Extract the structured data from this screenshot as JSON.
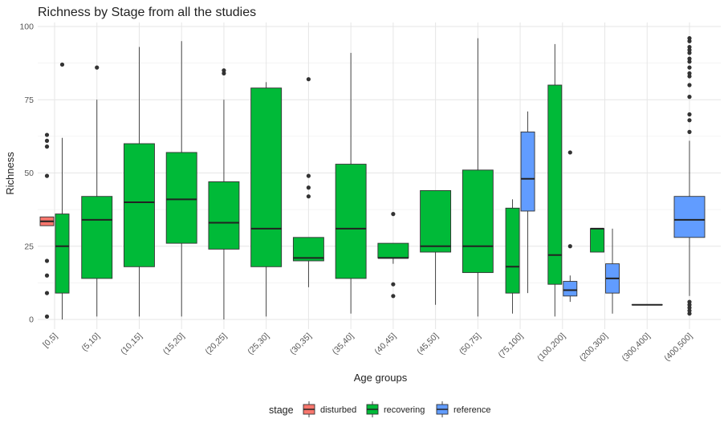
{
  "chart_data": {
    "type": "boxplot",
    "title": "Richness by Stage from all the studies",
    "xlabel": "Age groups",
    "ylabel": "Richness",
    "ylim": [
      0,
      100
    ],
    "yticks": [
      0,
      25,
      50,
      75,
      100
    ],
    "grid": true,
    "categories": [
      "[0,5]",
      "(5,10]",
      "(10,15]",
      "(15,20]",
      "(20,25]",
      "(25,30]",
      "(30,35]",
      "(35,40]",
      "(40,45]",
      "(45,50]",
      "(50,75]",
      "(75,100]",
      "(100,200]",
      "(200,300]",
      "(300,400]",
      "(400,500]"
    ],
    "legend": {
      "title": "stage",
      "position": "bottom",
      "entries": [
        {
          "name": "disturbed",
          "color": "#F8766D"
        },
        {
          "name": "recovering",
          "color": "#00BA38"
        },
        {
          "name": "reference",
          "color": "#619CFF"
        }
      ]
    },
    "boxes": [
      {
        "category": "[0,5]",
        "stage": "disturbed",
        "whisker_low": 32,
        "q1": 32,
        "median": 33.5,
        "q3": 35,
        "whisker_high": 35,
        "outliers": [
          63,
          61,
          59,
          49,
          20,
          15,
          9,
          1
        ]
      },
      {
        "category": "[0,5]",
        "stage": "recovering",
        "whisker_low": 0,
        "q1": 9,
        "median": 25,
        "q3": 36,
        "whisker_high": 62,
        "outliers": [
          87
        ]
      },
      {
        "category": "(5,10]",
        "stage": "recovering",
        "whisker_low": 1,
        "q1": 14,
        "median": 34,
        "q3": 42,
        "whisker_high": 75,
        "outliers": [
          86
        ]
      },
      {
        "category": "(10,15]",
        "stage": "recovering",
        "whisker_low": 1,
        "q1": 18,
        "median": 40,
        "q3": 60,
        "whisker_high": 93,
        "outliers": []
      },
      {
        "category": "(15,20]",
        "stage": "recovering",
        "whisker_low": 1,
        "q1": 26,
        "median": 41,
        "q3": 57,
        "whisker_high": 95,
        "outliers": []
      },
      {
        "category": "(20,25]",
        "stage": "recovering",
        "whisker_low": 0,
        "q1": 24,
        "median": 33,
        "q3": 47,
        "whisker_high": 75,
        "outliers": [
          85,
          84
        ]
      },
      {
        "category": "(25,30]",
        "stage": "recovering",
        "whisker_low": 1,
        "q1": 18,
        "median": 31,
        "q3": 79,
        "whisker_high": 81,
        "outliers": []
      },
      {
        "category": "(30,35]",
        "stage": "recovering",
        "whisker_low": 11,
        "q1": 20,
        "median": 21,
        "q3": 28,
        "whisker_high": 28,
        "outliers": [
          82,
          49,
          45,
          42
        ]
      },
      {
        "category": "(35,40]",
        "stage": "recovering",
        "whisker_low": 2,
        "q1": 14,
        "median": 31,
        "q3": 53,
        "whisker_high": 91,
        "outliers": []
      },
      {
        "category": "(40,45]",
        "stage": "recovering",
        "whisker_low": 19,
        "q1": 21,
        "median": 21,
        "q3": 26,
        "whisker_high": 26,
        "outliers": [
          36,
          12,
          8
        ]
      },
      {
        "category": "(45,50]",
        "stage": "recovering",
        "whisker_low": 5,
        "q1": 23,
        "median": 25,
        "q3": 44,
        "whisker_high": 44,
        "outliers": []
      },
      {
        "category": "(50,75]",
        "stage": "recovering",
        "whisker_low": 1,
        "q1": 16,
        "median": 25,
        "q3": 51,
        "whisker_high": 96,
        "outliers": []
      },
      {
        "category": "(75,100]",
        "stage": "recovering",
        "whisker_low": 2,
        "q1": 9,
        "median": 18,
        "q3": 38,
        "whisker_high": 41,
        "outliers": []
      },
      {
        "category": "(75,100]",
        "stage": "reference",
        "whisker_low": 9,
        "q1": 37,
        "median": 48,
        "q3": 64,
        "whisker_high": 71,
        "outliers": []
      },
      {
        "category": "(100,200]",
        "stage": "recovering",
        "whisker_low": 1,
        "q1": 12,
        "median": 22,
        "q3": 80,
        "whisker_high": 94,
        "outliers": []
      },
      {
        "category": "(100,200]",
        "stage": "reference",
        "whisker_low": 6,
        "q1": 8,
        "median": 10,
        "q3": 13,
        "whisker_high": 15,
        "outliers": [
          57,
          25
        ]
      },
      {
        "category": "(200,300]",
        "stage": "recovering",
        "whisker_low": 23,
        "q1": 23,
        "median": 31,
        "q3": 31,
        "whisker_high": 31,
        "outliers": []
      },
      {
        "category": "(200,300]",
        "stage": "reference",
        "whisker_low": 2,
        "q1": 9,
        "median": 14,
        "q3": 19,
        "whisker_high": 31,
        "outliers": []
      },
      {
        "category": "(300,400]",
        "stage": "reference",
        "whisker_low": 5,
        "q1": 5,
        "median": 5,
        "q3": 5,
        "whisker_high": 5,
        "outliers": []
      },
      {
        "category": "(400,500]",
        "stage": "reference",
        "whisker_low": 8,
        "q1": 28,
        "median": 34,
        "q3": 42,
        "whisker_high": 61,
        "outliers": [
          96,
          95,
          93,
          92,
          91,
          89,
          88,
          86,
          84,
          83,
          80,
          76,
          70,
          68,
          64,
          6,
          5,
          4,
          3,
          2
        ]
      }
    ]
  }
}
